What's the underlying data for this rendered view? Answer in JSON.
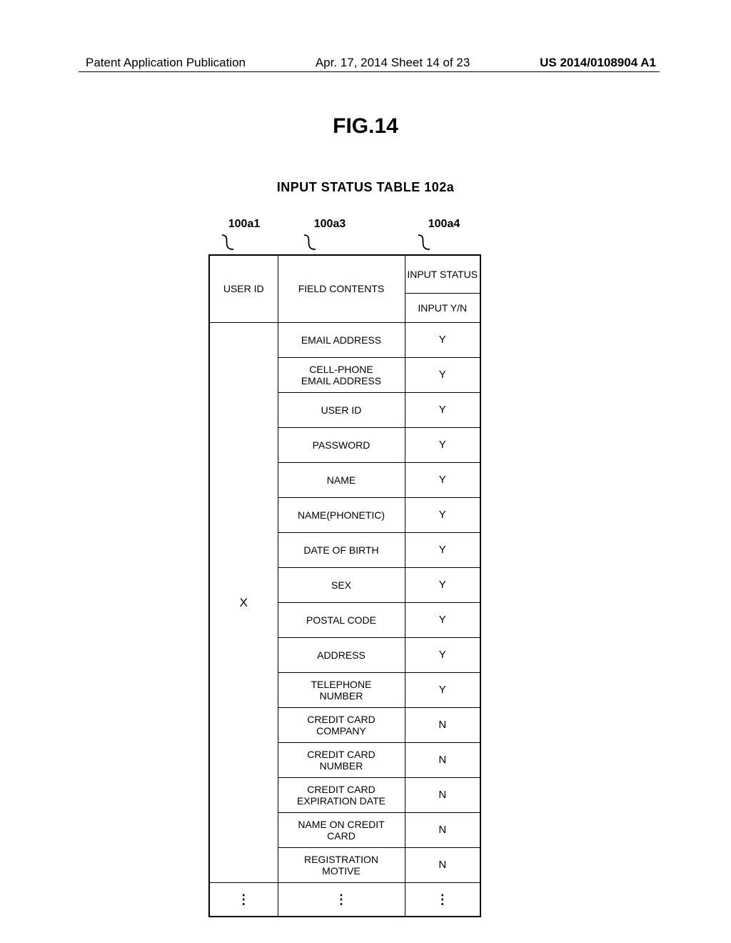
{
  "header": {
    "left": "Patent Application Publication",
    "center": "Apr. 17, 2014  Sheet 14 of 23",
    "right": "US 2014/0108904 A1"
  },
  "figure_number": "FIG.14",
  "table_title": "INPUT STATUS TABLE 102a",
  "callouts": {
    "c1": "100a1",
    "c3": "100a3",
    "c4": "100a4"
  },
  "table": {
    "columns": {
      "user_id": "USER ID",
      "field_contents": "FIELD CONTENTS",
      "input_status_top": "INPUT STATUS",
      "input_status_sub": "INPUT Y/N"
    },
    "user_value": "X",
    "rows": [
      {
        "field": "EMAIL ADDRESS",
        "status": "Y"
      },
      {
        "field": "CELL-PHONE EMAIL ADDRESS",
        "status": "Y"
      },
      {
        "field": "USER ID",
        "status": "Y"
      },
      {
        "field": "PASSWORD",
        "status": "Y"
      },
      {
        "field": "NAME",
        "status": "Y"
      },
      {
        "field": "NAME(PHONETIC)",
        "status": "Y"
      },
      {
        "field": "DATE OF BIRTH",
        "status": "Y"
      },
      {
        "field": "SEX",
        "status": "Y"
      },
      {
        "field": "POSTAL CODE",
        "status": "Y"
      },
      {
        "field": "ADDRESS",
        "status": "Y"
      },
      {
        "field": "TELEPHONE NUMBER",
        "status": "Y"
      },
      {
        "field": "CREDIT CARD COMPANY",
        "status": "N"
      },
      {
        "field": "CREDIT CARD NUMBER",
        "status": "N"
      },
      {
        "field": "CREDIT CARD EXPIRATION DATE",
        "status": "N"
      },
      {
        "field": "NAME ON CREDIT CARD",
        "status": "N"
      },
      {
        "field": "REGISTRATION MOTIVE",
        "status": "N"
      }
    ],
    "continuation": "⋮"
  },
  "style": {
    "bg": "#ffffff",
    "border": "#000000",
    "text": "#000000"
  }
}
